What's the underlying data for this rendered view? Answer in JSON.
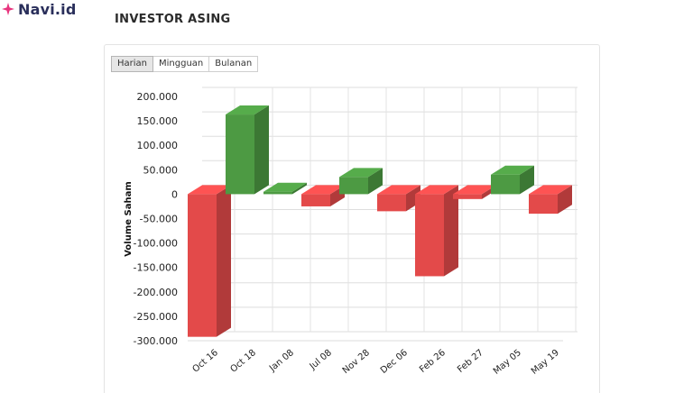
{
  "brand": {
    "name": "Navi.id",
    "icon": "sparkle-icon",
    "color": "#e8347e"
  },
  "page": {
    "title": "INVESTOR ASING"
  },
  "tabs": [
    {
      "label": "Harian",
      "active": true
    },
    {
      "label": "Mingguan",
      "active": false
    },
    {
      "label": "Bulanan",
      "active": false
    }
  ],
  "colors": {
    "positive": "#4d9a43",
    "negative": "#e34a4a"
  },
  "chart_data": {
    "type": "bar",
    "style": "3d-column",
    "title": "",
    "xlabel": "",
    "ylabel": "Volume Saham",
    "categories": [
      "Oct 16",
      "Oct 18",
      "Jan 08",
      "Jul 08",
      "Nov 28",
      "Dec 06",
      "Feb 26",
      "Feb 27",
      "May 05",
      "May 19"
    ],
    "values": [
      -292000,
      163000,
      5000,
      -25000,
      35000,
      -35000,
      -168000,
      -10000,
      40000,
      -40000
    ],
    "ylim": [
      -300000,
      200000
    ],
    "yticks": [
      200000,
      150000,
      100000,
      50000,
      0,
      -50000,
      -100000,
      -150000,
      -200000,
      -250000,
      -300000
    ],
    "ytick_labels": [
      "200.000",
      "150.000",
      "100.000",
      "50.000",
      "0",
      "-50.000",
      "-100.000",
      "-150.000",
      "-200.000",
      "-250.000",
      "-300.000"
    ],
    "grid": true,
    "legend": "none"
  }
}
